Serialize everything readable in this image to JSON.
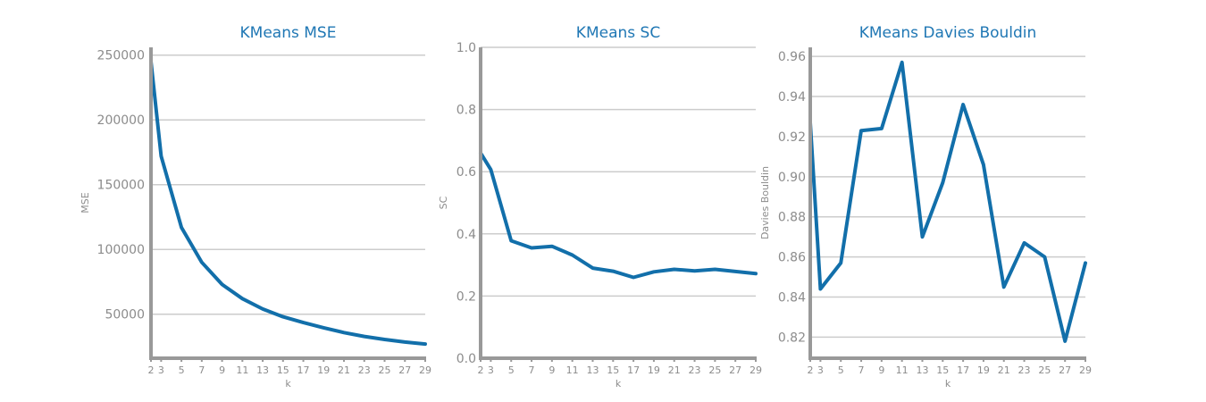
{
  "chart_data": [
    {
      "type": "line",
      "title": "KMeans MSE",
      "xlabel": "k",
      "ylabel": "MSE",
      "x": [
        2,
        3,
        5,
        7,
        9,
        11,
        13,
        15,
        17,
        19,
        21,
        23,
        25,
        27,
        29
      ],
      "values": [
        245000,
        172000,
        117000,
        90000,
        73000,
        62000,
        54000,
        48000,
        43500,
        39500,
        35800,
        32800,
        30500,
        28500,
        27000
      ],
      "xticks": [
        "2",
        "3",
        "5",
        "7",
        "9",
        "11",
        "13",
        "15",
        "17",
        "19",
        "21",
        "23",
        "25",
        "27",
        "29"
      ],
      "yticks": [
        50000,
        100000,
        150000,
        200000,
        250000
      ],
      "ytick_labels": [
        "50000",
        "100000",
        "150000",
        "200000",
        "250000"
      ],
      "xlim": [
        2,
        29
      ],
      "ylim": [
        16000,
        256000
      ],
      "grid": true,
      "color": "#126faa"
    },
    {
      "type": "line",
      "title": "KMeans SC",
      "xlabel": "k",
      "ylabel": "SC",
      "x": [
        2,
        3,
        5,
        7,
        9,
        11,
        13,
        15,
        17,
        19,
        21,
        23,
        25,
        27,
        29
      ],
      "values": [
        0.66,
        0.607,
        0.378,
        0.355,
        0.36,
        0.332,
        0.29,
        0.28,
        0.26,
        0.278,
        0.286,
        0.281,
        0.286,
        0.279,
        0.272
      ],
      "xticks": [
        "2",
        "3",
        "5",
        "7",
        "9",
        "11",
        "13",
        "15",
        "17",
        "19",
        "21",
        "23",
        "25",
        "27",
        "29"
      ],
      "yticks": [
        0.0,
        0.2,
        0.4,
        0.6,
        0.8,
        1.0
      ],
      "ytick_labels": [
        "0.0",
        "0.2",
        "0.4",
        "0.6",
        "0.8",
        "1.0"
      ],
      "xlim": [
        2,
        29
      ],
      "ylim": [
        0.0,
        1.0
      ],
      "grid": true,
      "color": "#126faa"
    },
    {
      "type": "line",
      "title": "KMeans Davies Bouldin",
      "xlabel": "k",
      "ylabel": "Davies Bouldin",
      "x": [
        2,
        3,
        5,
        7,
        9,
        11,
        13,
        15,
        17,
        19,
        21,
        23,
        25,
        27,
        29
      ],
      "values": [
        0.927,
        0.844,
        0.857,
        0.923,
        0.924,
        0.957,
        0.87,
        0.897,
        0.936,
        0.906,
        0.845,
        0.867,
        0.86,
        0.818,
        0.857
      ],
      "xticks": [
        "2",
        "3",
        "5",
        "7",
        "9",
        "11",
        "13",
        "15",
        "17",
        "19",
        "21",
        "23",
        "25",
        "27",
        "29"
      ],
      "yticks": [
        0.82,
        0.84,
        0.86,
        0.88,
        0.9,
        0.92,
        0.94,
        0.96
      ],
      "ytick_labels": [
        "0.82",
        "0.84",
        "0.86",
        "0.88",
        "0.90",
        "0.92",
        "0.94",
        "0.96"
      ],
      "xlim": [
        2,
        29
      ],
      "ylim": [
        0.8095,
        0.9645
      ],
      "grid": true,
      "color": "#126faa"
    }
  ]
}
